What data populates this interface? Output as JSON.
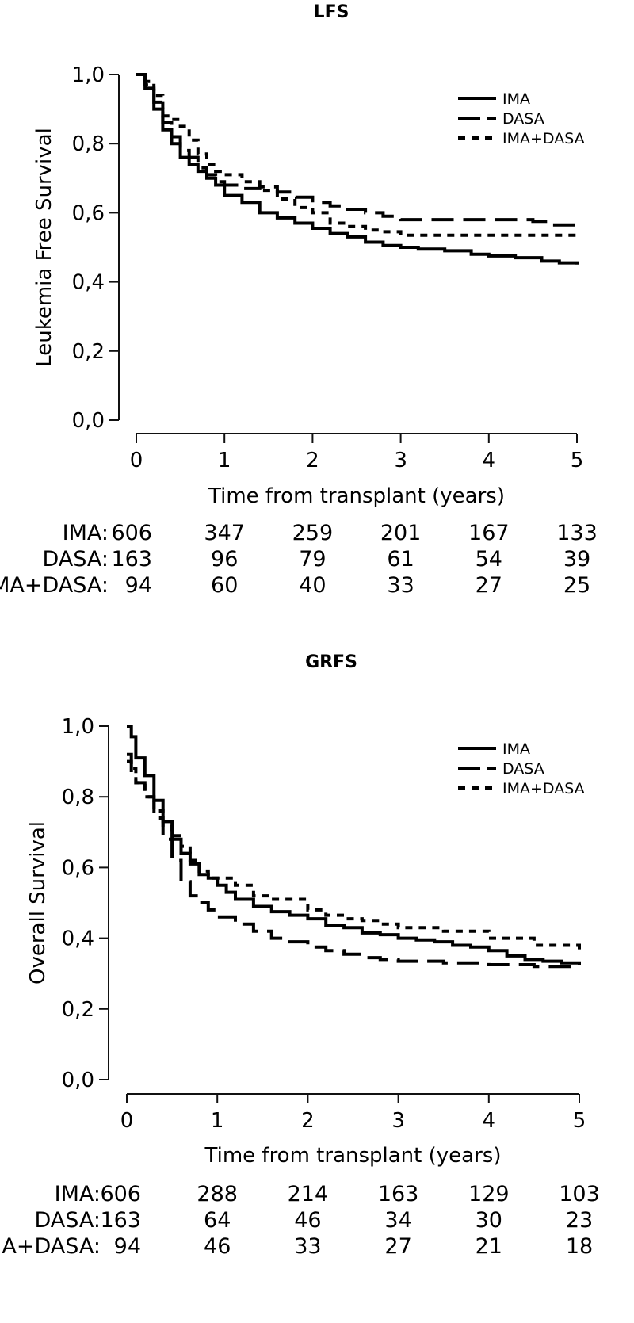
{
  "chart_data": [
    {
      "type": "line",
      "title": "LFS",
      "xlabel": "Time from transplant (years)",
      "ylabel": "Leukemia Free Survival",
      "xlim": [
        0,
        5
      ],
      "ylim": [
        0,
        1
      ],
      "x_ticks": [
        "0",
        "1",
        "2",
        "3",
        "4",
        "5"
      ],
      "y_ticks": [
        "0,0",
        "0,2",
        "0,4",
        "0,6",
        "0,8",
        "1,0"
      ],
      "legend_position": "top-right",
      "series": [
        {
          "name": "IMA",
          "style": "solid",
          "x": [
            0,
            0.1,
            0.2,
            0.3,
            0.4,
            0.5,
            0.6,
            0.7,
            0.8,
            0.9,
            1.0,
            1.2,
            1.4,
            1.6,
            1.8,
            2.0,
            2.2,
            2.4,
            2.6,
            2.8,
            3.0,
            3.2,
            3.5,
            3.8,
            4.0,
            4.3,
            4.6,
            4.8,
            5.0
          ],
          "y": [
            1.0,
            0.96,
            0.9,
            0.84,
            0.8,
            0.76,
            0.74,
            0.72,
            0.7,
            0.68,
            0.65,
            0.63,
            0.6,
            0.585,
            0.57,
            0.555,
            0.54,
            0.53,
            0.515,
            0.505,
            0.5,
            0.495,
            0.49,
            0.48,
            0.475,
            0.47,
            0.46,
            0.455,
            0.45
          ]
        },
        {
          "name": "DASA",
          "style": "dashed",
          "x": [
            0,
            0.1,
            0.2,
            0.3,
            0.4,
            0.5,
            0.6,
            0.7,
            0.8,
            0.9,
            1.0,
            1.2,
            1.4,
            1.6,
            1.8,
            2.0,
            2.2,
            2.4,
            2.6,
            2.8,
            3.0,
            3.5,
            4.0,
            4.3,
            4.5,
            4.7,
            5.0
          ],
          "y": [
            1.0,
            0.97,
            0.92,
            0.86,
            0.82,
            0.78,
            0.76,
            0.73,
            0.71,
            0.69,
            0.68,
            0.67,
            0.675,
            0.66,
            0.645,
            0.63,
            0.62,
            0.61,
            0.6,
            0.59,
            0.58,
            0.58,
            0.58,
            0.58,
            0.575,
            0.565,
            0.565
          ]
        },
        {
          "name": "IMA+DASA",
          "style": "dotted",
          "x": [
            0,
            0.1,
            0.2,
            0.3,
            0.4,
            0.5,
            0.6,
            0.7,
            0.8,
            0.9,
            1.0,
            1.2,
            1.4,
            1.6,
            1.8,
            2.0,
            2.2,
            2.4,
            2.6,
            2.8,
            3.0,
            3.5,
            4.0,
            4.5,
            5.0
          ],
          "y": [
            1.0,
            0.98,
            0.94,
            0.88,
            0.87,
            0.85,
            0.81,
            0.77,
            0.74,
            0.72,
            0.71,
            0.69,
            0.665,
            0.64,
            0.615,
            0.6,
            0.57,
            0.56,
            0.55,
            0.545,
            0.535,
            0.535,
            0.535,
            0.535,
            0.535
          ]
        }
      ],
      "risk_table": {
        "rows": [
          {
            "label": "IMA:",
            "values": [
              "606",
              "347",
              "259",
              "201",
              "167",
              "133"
            ]
          },
          {
            "label": "DASA:",
            "values": [
              "163",
              "96",
              "79",
              "61",
              "54",
              "39"
            ]
          },
          {
            "label": "IMA+DASA:",
            "values": [
              "94",
              "60",
              "40",
              "33",
              "27",
              "25"
            ]
          }
        ]
      }
    },
    {
      "type": "line",
      "title": "GRFS",
      "xlabel": "Time from transplant (years)",
      "ylabel": "Overall Survival",
      "xlim": [
        0,
        5
      ],
      "ylim": [
        0,
        1
      ],
      "x_ticks": [
        "0",
        "1",
        "2",
        "3",
        "4",
        "5"
      ],
      "y_ticks": [
        "0,0",
        "0,2",
        "0,4",
        "0,6",
        "0,8",
        "1,0"
      ],
      "legend_position": "top-right",
      "series": [
        {
          "name": "IMA",
          "style": "solid",
          "x": [
            0,
            0.05,
            0.1,
            0.2,
            0.3,
            0.4,
            0.5,
            0.6,
            0.7,
            0.8,
            0.9,
            1.0,
            1.1,
            1.2,
            1.4,
            1.6,
            1.8,
            2.0,
            2.2,
            2.4,
            2.6,
            2.8,
            3.0,
            3.2,
            3.4,
            3.6,
            3.8,
            4.0,
            4.2,
            4.4,
            4.6,
            4.8,
            5.0
          ],
          "y": [
            1.0,
            0.97,
            0.91,
            0.86,
            0.79,
            0.73,
            0.68,
            0.64,
            0.61,
            0.58,
            0.57,
            0.55,
            0.53,
            0.51,
            0.49,
            0.475,
            0.465,
            0.455,
            0.435,
            0.43,
            0.415,
            0.41,
            0.4,
            0.395,
            0.39,
            0.38,
            0.375,
            0.365,
            0.35,
            0.34,
            0.335,
            0.33,
            0.325
          ]
        },
        {
          "name": "DASA",
          "style": "dashed",
          "x": [
            0,
            0.05,
            0.1,
            0.2,
            0.3,
            0.4,
            0.5,
            0.6,
            0.7,
            0.8,
            0.9,
            1.0,
            1.2,
            1.4,
            1.6,
            1.8,
            2.0,
            2.2,
            2.4,
            2.6,
            2.8,
            3.0,
            3.5,
            4.0,
            4.5,
            5.0
          ],
          "y": [
            0.92,
            0.87,
            0.84,
            0.8,
            0.74,
            0.68,
            0.62,
            0.56,
            0.52,
            0.5,
            0.48,
            0.46,
            0.44,
            0.42,
            0.4,
            0.39,
            0.375,
            0.365,
            0.355,
            0.345,
            0.34,
            0.335,
            0.33,
            0.325,
            0.32,
            0.32
          ]
        },
        {
          "name": "IMA+DASA",
          "style": "dotted",
          "x": [
            0,
            0.05,
            0.1,
            0.2,
            0.3,
            0.4,
            0.5,
            0.6,
            0.7,
            0.8,
            0.9,
            1.0,
            1.2,
            1.4,
            1.6,
            1.8,
            2.0,
            2.2,
            2.4,
            2.6,
            2.8,
            3.0,
            3.5,
            4.0,
            4.5,
            5.0
          ],
          "y": [
            0.9,
            0.88,
            0.84,
            0.8,
            0.76,
            0.72,
            0.69,
            0.66,
            0.62,
            0.59,
            0.57,
            0.57,
            0.55,
            0.52,
            0.51,
            0.51,
            0.48,
            0.465,
            0.455,
            0.45,
            0.44,
            0.43,
            0.42,
            0.4,
            0.38,
            0.36
          ]
        }
      ],
      "risk_table": {
        "rows": [
          {
            "label": "IMA:",
            "values": [
              "606",
              "288",
              "214",
              "163",
              "129",
              "103"
            ]
          },
          {
            "label": "DASA:",
            "values": [
              "163",
              "64",
              "46",
              "34",
              "30",
              "23"
            ]
          },
          {
            "label": "IMA+DASA:",
            "values": [
              "94",
              "46",
              "33",
              "27",
              "21",
              "18"
            ]
          }
        ]
      }
    }
  ]
}
